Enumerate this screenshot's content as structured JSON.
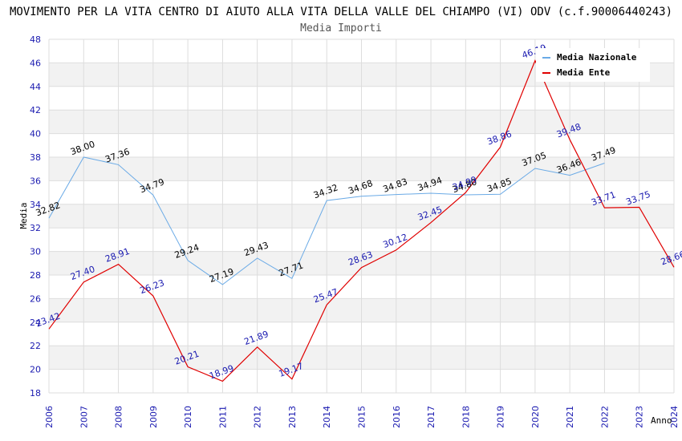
{
  "chart_data": {
    "type": "line",
    "title": "MOVIMENTO PER LA VITA CENTRO DI AIUTO ALLA VITA DELLA VALLE DEL CHIAMPO (VI) ODV (c.f.90006440243)",
    "subtitle": "Media Importi",
    "xlabel": "Anno",
    "ylabel": "Media",
    "ylim": [
      18,
      48
    ],
    "ystep": 2,
    "x": [
      2006,
      2007,
      2008,
      2009,
      2010,
      2011,
      2012,
      2013,
      2014,
      2015,
      2016,
      2017,
      2018,
      2019,
      2020,
      2021,
      2022,
      2023,
      2024
    ],
    "grid": true,
    "legend_position": "top-right",
    "series": [
      {
        "name": "Media Nazionale",
        "color": "#6aaae6",
        "label_color": "#000000",
        "values": [
          32.82,
          38.0,
          37.36,
          34.79,
          29.24,
          27.19,
          29.43,
          27.71,
          34.32,
          34.68,
          34.83,
          34.94,
          34.8,
          34.85,
          37.05,
          36.46,
          37.49,
          null,
          null
        ]
      },
      {
        "name": "Media Ente",
        "color": "#e00000",
        "label_color": "#1a1ab0",
        "values": [
          23.42,
          27.4,
          28.91,
          26.23,
          20.21,
          18.99,
          21.89,
          19.17,
          25.47,
          28.63,
          30.12,
          32.45,
          34.99,
          38.86,
          46.19,
          39.48,
          33.71,
          33.75,
          28.66
        ]
      }
    ]
  }
}
